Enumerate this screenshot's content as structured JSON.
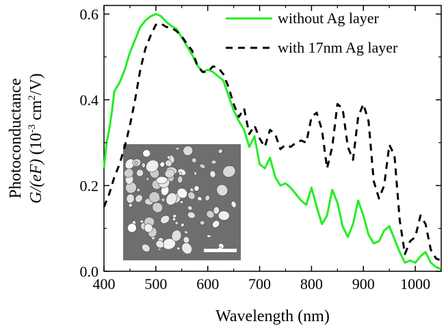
{
  "chart_data": {
    "type": "line",
    "title": "",
    "xlabel": "Wavelength (nm)",
    "ylabel_line1": "Photoconductance",
    "ylabel_line2_parts": {
      "g_part": "G/(eF)",
      "paren_open": " (10",
      "exp1": "-3",
      "mid": " cm",
      "exp2": "2",
      "tail": "/V)"
    },
    "xlim": [
      400,
      1050
    ],
    "ylim": [
      0.0,
      0.62
    ],
    "xticks": [
      400,
      500,
      600,
      700,
      800,
      900,
      1000
    ],
    "xtick_labels": [
      "400",
      "500",
      "600",
      "700",
      "800",
      "900",
      "1000"
    ],
    "yticks": [
      0.0,
      0.2,
      0.4,
      0.6
    ],
    "ytick_labels": [
      "0.0",
      "0.2",
      "0.4",
      "0.6"
    ],
    "grid": false,
    "legend_position": "top-right",
    "inset": "SEM micrograph of Ag nanoparticles with scale bar (lower-left)",
    "series": [
      {
        "name": "without Ag layer",
        "color": "#22ee22",
        "style": "solid",
        "points": [
          [
            400,
            0.24
          ],
          [
            405,
            0.3
          ],
          [
            410,
            0.33
          ],
          [
            415,
            0.37
          ],
          [
            420,
            0.42
          ],
          [
            425,
            0.43
          ],
          [
            430,
            0.44
          ],
          [
            440,
            0.47
          ],
          [
            450,
            0.51
          ],
          [
            460,
            0.54
          ],
          [
            470,
            0.57
          ],
          [
            480,
            0.585
          ],
          [
            490,
            0.595
          ],
          [
            500,
            0.6
          ],
          [
            510,
            0.595
          ],
          [
            520,
            0.582
          ],
          [
            530,
            0.572
          ],
          [
            540,
            0.565
          ],
          [
            550,
            0.545
          ],
          [
            560,
            0.525
          ],
          [
            570,
            0.505
          ],
          [
            580,
            0.48
          ],
          [
            590,
            0.465
          ],
          [
            600,
            0.47
          ],
          [
            610,
            0.465
          ],
          [
            620,
            0.455
          ],
          [
            630,
            0.445
          ],
          [
            640,
            0.41
          ],
          [
            650,
            0.375
          ],
          [
            660,
            0.35
          ],
          [
            670,
            0.33
          ],
          [
            680,
            0.29
          ],
          [
            690,
            0.315
          ],
          [
            700,
            0.25
          ],
          [
            710,
            0.24
          ],
          [
            720,
            0.265
          ],
          [
            730,
            0.22
          ],
          [
            740,
            0.2
          ],
          [
            750,
            0.205
          ],
          [
            760,
            0.195
          ],
          [
            770,
            0.18
          ],
          [
            780,
            0.165
          ],
          [
            790,
            0.155
          ],
          [
            800,
            0.195
          ],
          [
            810,
            0.15
          ],
          [
            820,
            0.11
          ],
          [
            830,
            0.13
          ],
          [
            840,
            0.19
          ],
          [
            850,
            0.16
          ],
          [
            860,
            0.105
          ],
          [
            870,
            0.08
          ],
          [
            880,
            0.11
          ],
          [
            890,
            0.165
          ],
          [
            900,
            0.13
          ],
          [
            910,
            0.085
          ],
          [
            920,
            0.065
          ],
          [
            930,
            0.07
          ],
          [
            940,
            0.095
          ],
          [
            950,
            0.105
          ],
          [
            960,
            0.075
          ],
          [
            970,
            0.045
          ],
          [
            980,
            0.02
          ],
          [
            990,
            0.025
          ],
          [
            1000,
            0.02
          ],
          [
            1010,
            0.035
          ],
          [
            1020,
            0.045
          ],
          [
            1030,
            0.02
          ],
          [
            1040,
            0.01
          ],
          [
            1050,
            0.005
          ]
        ]
      },
      {
        "name": "with 17nm Ag layer",
        "color": "#000000",
        "style": "dashed",
        "points": [
          [
            400,
            0.15
          ],
          [
            410,
            0.18
          ],
          [
            420,
            0.22
          ],
          [
            430,
            0.25
          ],
          [
            440,
            0.29
          ],
          [
            450,
            0.34
          ],
          [
            460,
            0.4
          ],
          [
            470,
            0.47
          ],
          [
            480,
            0.52
          ],
          [
            490,
            0.55
          ],
          [
            500,
            0.575
          ],
          [
            510,
            0.578
          ],
          [
            520,
            0.57
          ],
          [
            530,
            0.568
          ],
          [
            540,
            0.56
          ],
          [
            550,
            0.548
          ],
          [
            560,
            0.53
          ],
          [
            570,
            0.515
          ],
          [
            580,
            0.48
          ],
          [
            590,
            0.465
          ],
          [
            600,
            0.465
          ],
          [
            610,
            0.478
          ],
          [
            620,
            0.475
          ],
          [
            630,
            0.46
          ],
          [
            640,
            0.43
          ],
          [
            650,
            0.39
          ],
          [
            660,
            0.36
          ],
          [
            670,
            0.38
          ],
          [
            680,
            0.32
          ],
          [
            690,
            0.34
          ],
          [
            700,
            0.31
          ],
          [
            710,
            0.29
          ],
          [
            720,
            0.33
          ],
          [
            730,
            0.32
          ],
          [
            740,
            0.285
          ],
          [
            750,
            0.295
          ],
          [
            760,
            0.29
          ],
          [
            770,
            0.3
          ],
          [
            780,
            0.305
          ],
          [
            790,
            0.3
          ],
          [
            800,
            0.36
          ],
          [
            810,
            0.37
          ],
          [
            820,
            0.33
          ],
          [
            830,
            0.24
          ],
          [
            840,
            0.29
          ],
          [
            850,
            0.39
          ],
          [
            860,
            0.38
          ],
          [
            870,
            0.29
          ],
          [
            880,
            0.26
          ],
          [
            890,
            0.36
          ],
          [
            900,
            0.39
          ],
          [
            910,
            0.35
          ],
          [
            920,
            0.21
          ],
          [
            930,
            0.17
          ],
          [
            940,
            0.2
          ],
          [
            950,
            0.295
          ],
          [
            960,
            0.27
          ],
          [
            970,
            0.12
          ],
          [
            980,
            0.04
          ],
          [
            990,
            0.07
          ],
          [
            1000,
            0.08
          ],
          [
            1010,
            0.13
          ],
          [
            1020,
            0.11
          ],
          [
            1030,
            0.05
          ],
          [
            1040,
            0.03
          ],
          [
            1050,
            0.025
          ]
        ]
      }
    ]
  }
}
